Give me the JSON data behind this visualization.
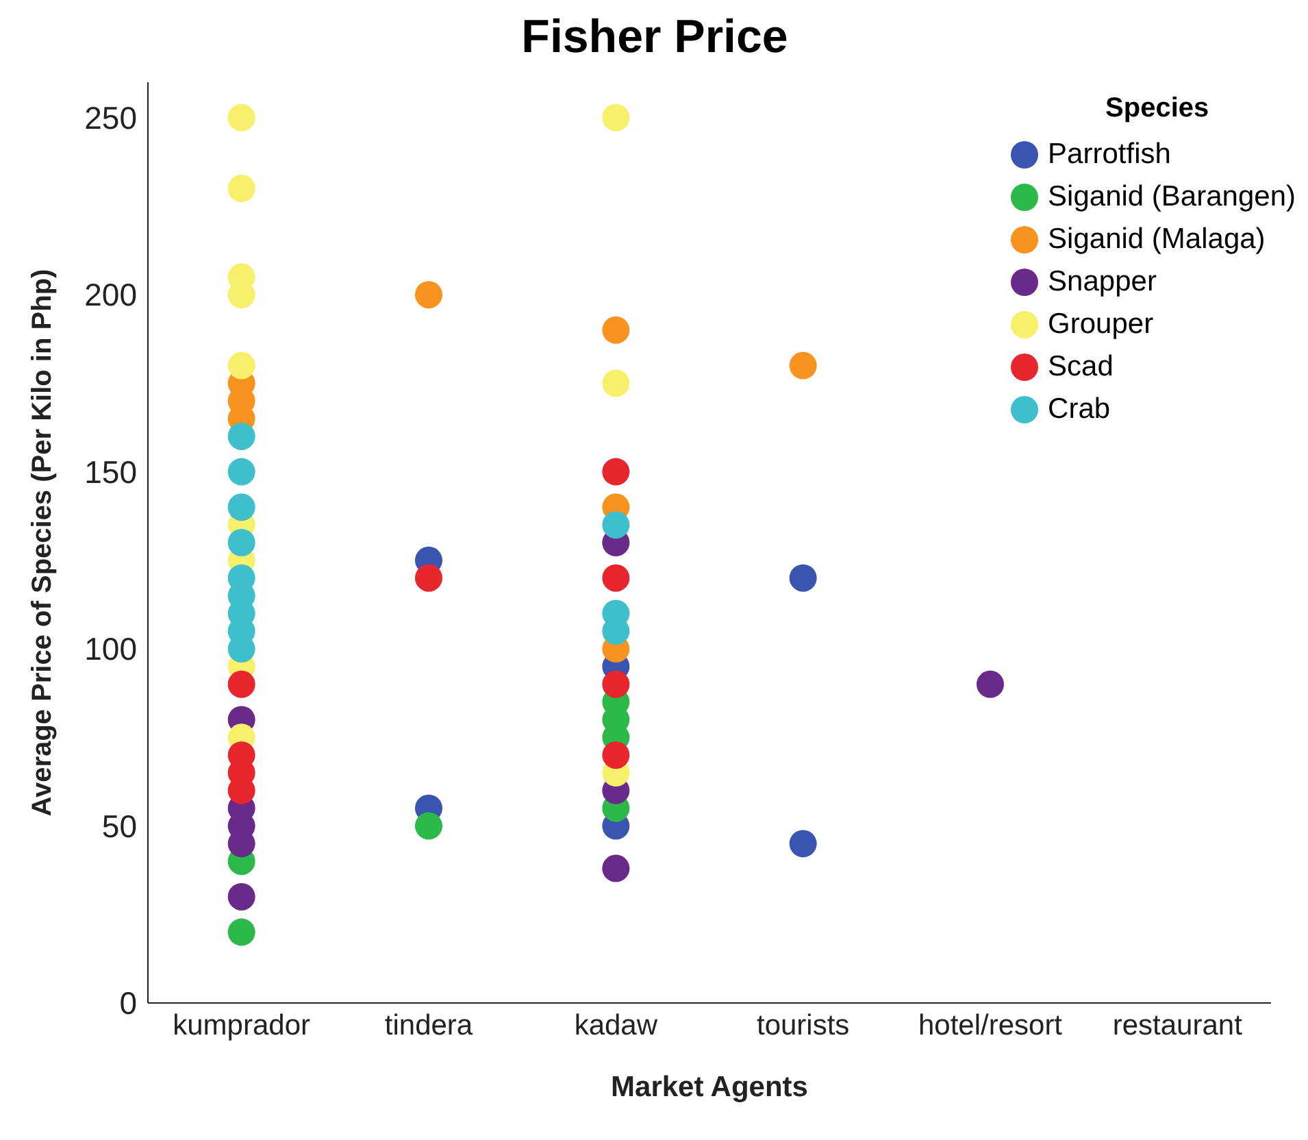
{
  "chart_data": {
    "type": "scatter",
    "title": "Fisher Price",
    "xlabel": "Market Agents",
    "ylabel": "Average Price of Species (Per Kilo in Php)",
    "legend_title": "Species",
    "categories": [
      "kumprador",
      "tindera",
      "kadaw",
      "tourists",
      "hotel/resort",
      "restaurant"
    ],
    "ylim": [
      0,
      260
    ],
    "yticks": [
      0,
      50,
      100,
      150,
      200,
      250
    ],
    "grid": false,
    "legend": "top right",
    "marker": "circle",
    "series": [
      {
        "name": "Parrotfish",
        "color": "#3a55b0",
        "x": [
          "tindera",
          "tindera",
          "kadaw",
          "kadaw",
          "tourists",
          "tourists"
        ],
        "values": [
          125,
          55,
          95,
          50,
          120,
          45
        ]
      },
      {
        "name": "Siganid (Barangen)",
        "color": "#2db84a",
        "x": [
          "kumprador",
          "kumprador",
          "tindera",
          "kadaw",
          "kadaw",
          "kadaw",
          "kadaw"
        ],
        "values": [
          40,
          20,
          50,
          85,
          80,
          75,
          55
        ]
      },
      {
        "name": "Siganid (Malaga)",
        "color": "#f7931e",
        "x": [
          "kumprador",
          "kumprador",
          "kumprador",
          "tindera",
          "kadaw",
          "kadaw",
          "kadaw",
          "tourists"
        ],
        "values": [
          175,
          170,
          165,
          200,
          190,
          140,
          100,
          180
        ]
      },
      {
        "name": "Snapper",
        "color": "#6a2a8a",
        "x": [
          "kumprador",
          "kumprador",
          "kumprador",
          "kumprador",
          "kumprador",
          "kadaw",
          "kadaw",
          "kadaw",
          "hotel/resort"
        ],
        "values": [
          80,
          55,
          50,
          45,
          30,
          130,
          60,
          38,
          90
        ]
      },
      {
        "name": "Grouper",
        "color": "#f7f06a",
        "x": [
          "kumprador",
          "kumprador",
          "kumprador",
          "kumprador",
          "kumprador",
          "kumprador",
          "kumprador",
          "kumprador",
          "kumprador",
          "kadaw",
          "kadaw",
          "kadaw"
        ],
        "values": [
          250,
          230,
          205,
          200,
          180,
          135,
          125,
          95,
          75,
          250,
          175,
          65
        ]
      },
      {
        "name": "Scad",
        "color": "#e8262e",
        "x": [
          "kumprador",
          "kumprador",
          "kumprador",
          "kumprador",
          "tindera",
          "kadaw",
          "kadaw",
          "kadaw",
          "kadaw"
        ],
        "values": [
          90,
          70,
          65,
          60,
          120,
          150,
          120,
          90,
          70
        ]
      },
      {
        "name": "Crab",
        "color": "#3fbfcc",
        "x": [
          "kumprador",
          "kumprador",
          "kumprador",
          "kumprador",
          "kumprador",
          "kumprador",
          "kumprador",
          "kumprador",
          "kumprador",
          "kadaw",
          "kadaw",
          "kadaw"
        ],
        "values": [
          160,
          150,
          140,
          130,
          120,
          115,
          110,
          105,
          100,
          135,
          110,
          105
        ]
      }
    ]
  }
}
